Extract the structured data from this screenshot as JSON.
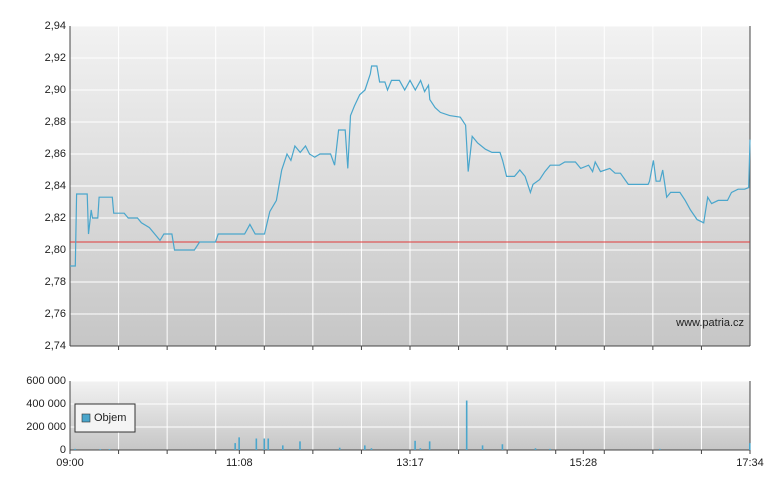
{
  "chart_data": [
    {
      "type": "line",
      "watermark": "www.patria.cz",
      "x": [
        "09:00",
        "09:04",
        "09:05",
        "09:13",
        "09:14",
        "09:16",
        "09:17",
        "09:21",
        "09:22",
        "09:32",
        "09:33",
        "09:41",
        "09:44",
        "09:51",
        "09:54",
        "10:00",
        "10:08",
        "10:11",
        "10:17",
        "10:19",
        "10:34",
        "10:38",
        "10:50",
        "10:52",
        "11:12",
        "11:16",
        "11:20",
        "11:27",
        "11:31",
        "11:36",
        "11:40",
        "11:44",
        "11:47",
        "11:50",
        "11:54",
        "11:58",
        "12:01",
        "12:05",
        "12:09",
        "12:17",
        "12:20",
        "12:23",
        "12:28",
        "12:30",
        "12:32",
        "12:35",
        "12:39",
        "12:43",
        "12:47",
        "12:48",
        "12:52",
        "12:54",
        "12:58",
        "13:00",
        "13:03",
        "13:09",
        "13:13",
        "13:17",
        "13:21",
        "13:25",
        "13:28",
        "13:31",
        "13:32",
        "13:36",
        "13:40",
        "13:47",
        "13:55",
        "13:59",
        "14:01",
        "14:04",
        "14:08",
        "14:14",
        "14:19",
        "14:25",
        "14:27",
        "14:30",
        "14:36",
        "14:40",
        "14:44",
        "14:48",
        "14:50",
        "14:55",
        "14:59",
        "15:03",
        "15:10",
        "15:14",
        "15:22",
        "15:26",
        "15:32",
        "15:35",
        "15:37",
        "15:41",
        "15:48",
        "15:52",
        "15:56",
        "16:02",
        "16:17",
        "16:18",
        "16:21",
        "16:23",
        "16:26",
        "16:28",
        "16:31",
        "16:34",
        "16:41",
        "16:45",
        "16:49",
        "16:54",
        "16:59",
        "17:02",
        "17:05",
        "17:10",
        "17:17",
        "17:20",
        "17:25",
        "17:30",
        "17:33",
        "17:34"
      ],
      "series": [
        {
          "color": "#4aa6cc",
          "values": [
            2.79,
            2.79,
            2.835,
            2.835,
            2.81,
            2.825,
            2.82,
            2.82,
            2.833,
            2.833,
            2.823,
            2.823,
            2.82,
            2.82,
            2.817,
            2.814,
            2.806,
            2.81,
            2.81,
            2.8,
            2.8,
            2.805,
            2.805,
            2.81,
            2.81,
            2.816,
            2.81,
            2.81,
            2.824,
            2.831,
            2.85,
            2.86,
            2.856,
            2.865,
            2.861,
            2.865,
            2.86,
            2.858,
            2.86,
            2.86,
            2.853,
            2.875,
            2.875,
            2.851,
            2.884,
            2.89,
            2.897,
            2.9,
            2.91,
            2.915,
            2.915,
            2.905,
            2.905,
            2.9,
            2.906,
            2.906,
            2.9,
            2.906,
            2.9,
            2.906,
            2.899,
            2.903,
            2.894,
            2.889,
            2.886,
            2.884,
            2.883,
            2.878,
            2.849,
            2.871,
            2.867,
            2.863,
            2.861,
            2.861,
            2.856,
            2.846,
            2.846,
            2.85,
            2.846,
            2.836,
            2.841,
            2.844,
            2.849,
            2.853,
            2.853,
            2.855,
            2.855,
            2.851,
            2.853,
            2.849,
            2.855,
            2.849,
            2.851,
            2.848,
            2.848,
            2.841,
            2.841,
            2.843,
            2.856,
            2.843,
            2.843,
            2.85,
            2.833,
            2.836,
            2.836,
            2.831,
            2.825,
            2.819,
            2.817,
            2.833,
            2.829,
            2.831,
            2.831,
            2.836,
            2.838,
            2.838,
            2.839,
            2.869
          ]
        }
      ],
      "reference_line": {
        "value": 2.805,
        "color": "#e03a3a"
      },
      "xlim": [
        "09:00",
        "17:34"
      ],
      "ylim": [
        2.74,
        2.94
      ],
      "yticks": [
        {
          "value": 2.74,
          "label": "2,74"
        },
        {
          "value": 2.76,
          "label": "2,76"
        },
        {
          "value": 2.78,
          "label": "2,78"
        },
        {
          "value": 2.8,
          "label": "2,80"
        },
        {
          "value": 2.82,
          "label": "2,82"
        },
        {
          "value": 2.84,
          "label": "2,84"
        },
        {
          "value": 2.86,
          "label": "2,86"
        },
        {
          "value": 2.88,
          "label": "2,88"
        },
        {
          "value": 2.9,
          "label": "2,90"
        },
        {
          "value": 2.92,
          "label": "2,92"
        },
        {
          "value": 2.94,
          "label": "2,94"
        }
      ],
      "grid": true
    },
    {
      "type": "bar",
      "x": [
        "09:04",
        "09:23",
        "09:30",
        "11:05",
        "11:08",
        "11:21",
        "11:27",
        "11:30",
        "11:41",
        "11:54",
        "12:24",
        "12:43",
        "12:48",
        "13:21",
        "13:25",
        "13:32",
        "14:00",
        "14:12",
        "14:27",
        "14:52",
        "15:03",
        "16:26",
        "17:34"
      ],
      "series": [
        {
          "name": "Objem",
          "color": "#4aa6cc",
          "values": [
            10000,
            8000,
            8000,
            60000,
            110000,
            100000,
            100000,
            100000,
            40000,
            75000,
            20000,
            40000,
            15000,
            80000,
            15000,
            75000,
            430000,
            40000,
            50000,
            15000,
            10000,
            10000,
            60000
          ]
        }
      ],
      "xlim": [
        "09:00",
        "17:34"
      ],
      "xticks": [
        "09:00",
        "11:08",
        "13:17",
        "15:28",
        "17:34"
      ],
      "ylim": [
        0,
        600000
      ],
      "yticks": [
        0,
        {
          "value": 200000,
          "label": "200 000"
        },
        {
          "value": 400000,
          "label": "400 000"
        },
        {
          "value": 600000,
          "label": "600 000"
        }
      ],
      "grid": true
    }
  ]
}
